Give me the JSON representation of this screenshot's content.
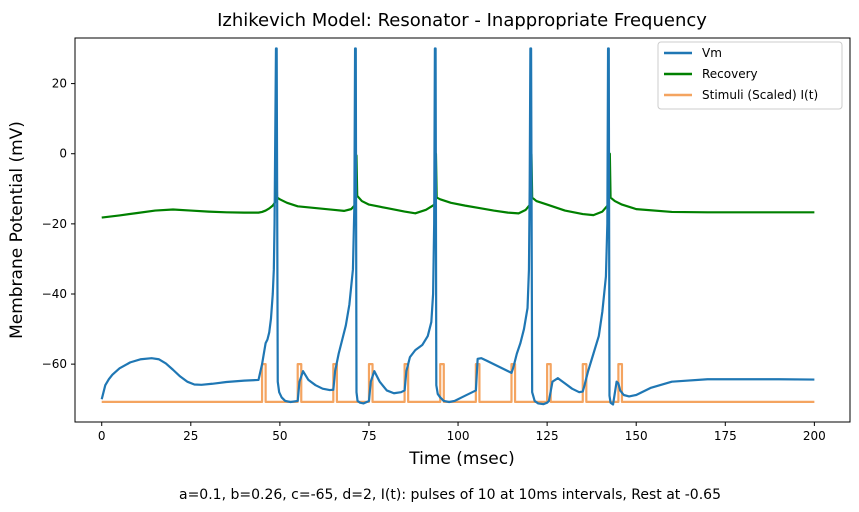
{
  "chart_data": {
    "type": "line",
    "title": "Izhikevich Model: Resonator - Inappropriate Frequency",
    "xlabel": "Time (msec)",
    "ylabel": "Membrane Potential (mV)",
    "caption": "a=0.1, b=0.26, c=-65, d=2, I(t): pulses of 10 at 10ms intervals, Rest at -0.65",
    "xlim": [
      -7.5,
      210
    ],
    "ylim": [
      -76.5,
      33
    ],
    "xticks": [
      0,
      25,
      50,
      75,
      100,
      125,
      150,
      175,
      200
    ],
    "yticks": [
      -60,
      -40,
      -20,
      0,
      20
    ],
    "legend_position": "top-right",
    "grid": false,
    "colors": {
      "vm": "#1f77b4",
      "recovery": "#008000",
      "stimuli": "#f4a460"
    },
    "series": [
      {
        "name": "Vm",
        "x": [
          0,
          1,
          2,
          3,
          5,
          8,
          11,
          14,
          16,
          18,
          20,
          22,
          24,
          26,
          28,
          31,
          35,
          40,
          44,
          45,
          45.5,
          46,
          46.5,
          47,
          47.5,
          48,
          48.3,
          48.5,
          48.7,
          48.9,
          49.1,
          49.4,
          49.8,
          50.5,
          51.5,
          53,
          55,
          55.5,
          56.5,
          58,
          60,
          62,
          64,
          65,
          65.5,
          66.5,
          67.5,
          68.5,
          69.5,
          70.5,
          70.9,
          71.1,
          71.3,
          71.5,
          71.8,
          72.5,
          73.5,
          75,
          75.5,
          76.5,
          78,
          80,
          82,
          84,
          85,
          85.5,
          86.5,
          88,
          90,
          91.5,
          92.5,
          93,
          93.3,
          93.5,
          93.7,
          93.9,
          94.3,
          95,
          96,
          97.5,
          99,
          101,
          103,
          105,
          105.5,
          106.5,
          108,
          110,
          112,
          114,
          115,
          115.5,
          116.5,
          117.5,
          118.5,
          119.5,
          119.9,
          120.1,
          120.3,
          120.5,
          120.8,
          121.5,
          122.5,
          124,
          125,
          125.5,
          126.5,
          128,
          130,
          132,
          134,
          135,
          135.5,
          136.5,
          138,
          139.5,
          140.5,
          141.5,
          141.9,
          142.1,
          142.3,
          142.5,
          142.8,
          143.5,
          144.5,
          145,
          145.5,
          146.5,
          148,
          150,
          154,
          160,
          170,
          180,
          190,
          200
        ],
        "y": [
          -70,
          -66,
          -64.3,
          -63,
          -61.2,
          -59.5,
          -58.6,
          -58.3,
          -58.6,
          -59.8,
          -61.6,
          -63.5,
          -65,
          -65.8,
          -65.9,
          -65.6,
          -65.1,
          -64.7,
          -64.5,
          -60,
          -57,
          -54,
          -53,
          -51,
          -47,
          -40,
          -33,
          -20,
          5,
          30,
          30,
          -65,
          -68,
          -69.5,
          -70.5,
          -70.8,
          -70.5,
          -65,
          -62,
          -64.5,
          -66,
          -67,
          -67.4,
          -67.3,
          -62,
          -57,
          -53,
          -49,
          -43,
          -33,
          -15,
          30,
          30,
          -68,
          -70.5,
          -71,
          -71.2,
          -70.5,
          -65,
          -62,
          -65,
          -67.5,
          -68.3,
          -68,
          -67.5,
          -62,
          -58,
          -56,
          -54.5,
          -52,
          -48,
          -40,
          -20,
          30,
          30,
          -66,
          -68.5,
          -69.5,
          -70.5,
          -70.8,
          -70.5,
          -69.5,
          -68.5,
          -67.5,
          -58.5,
          -58.3,
          -59,
          -60,
          -61,
          -62,
          -62.5,
          -61,
          -57,
          -54,
          -50,
          -44,
          -33,
          -10,
          30,
          30,
          -68,
          -70.5,
          -71.2,
          -71.4,
          -71,
          -70.5,
          -65,
          -64,
          -65.5,
          -67,
          -68,
          -67.8,
          -66,
          -62,
          -57,
          -52,
          -45,
          -35,
          -20,
          30,
          30,
          -69,
          -71,
          -71.5,
          -65,
          -65.5,
          -67.5,
          -68.8,
          -69.2,
          -68.8,
          -66.8,
          -65,
          -64.3,
          -64.3,
          -64.3,
          -64.4
        ]
      },
      {
        "name": "Recovery",
        "x": [
          0,
          5,
          10,
          15,
          20,
          25,
          30,
          35,
          40,
          44,
          45,
          46,
          47,
          48,
          48.7,
          49,
          49.2,
          50,
          52,
          55,
          60,
          65,
          68,
          70,
          71.2,
          71.5,
          71.7,
          73,
          75,
          80,
          85,
          88,
          91,
          93.4,
          93.8,
          94,
          95,
          98,
          102,
          106,
          110,
          114,
          117,
          119,
          120.2,
          120.6,
          120.8,
          122,
          125,
          130,
          135,
          138,
          140.5,
          142.2,
          142.6,
          142.8,
          144,
          146,
          150,
          160,
          170,
          180,
          190,
          200
        ],
        "y": [
          -18.2,
          -17.6,
          -16.9,
          -16.2,
          -15.9,
          -16.2,
          -16.5,
          -16.7,
          -16.8,
          -16.8,
          -16.6,
          -16.2,
          -15.6,
          -14.8,
          -13.8,
          0,
          -12.5,
          -13,
          -14,
          -15,
          -15.5,
          -16,
          -16.3,
          -15.8,
          -14.5,
          -0.5,
          -12,
          -13.5,
          -14.5,
          -15.5,
          -16.5,
          -17,
          -16,
          -14.5,
          0,
          -12.5,
          -13,
          -14,
          -14.8,
          -15.5,
          -16.2,
          -16.8,
          -17,
          -16,
          -14.5,
          0,
          -12.5,
          -13.5,
          -14.5,
          -16.2,
          -17.2,
          -17.5,
          -16.5,
          -14.5,
          0,
          -12.5,
          -13.5,
          -14.5,
          -15.8,
          -16.6,
          -16.7,
          -16.7,
          -16.7,
          -16.7
        ]
      },
      {
        "name": "Stimuli (Scaled) I(t)",
        "baseline": -70.75,
        "amplitude": -60.0,
        "pulses": [
          [
            45,
            46
          ],
          [
            55,
            56
          ],
          [
            65,
            66
          ],
          [
            75,
            76
          ],
          [
            85,
            86
          ],
          [
            95,
            96
          ],
          [
            105,
            106
          ],
          [
            115,
            116
          ],
          [
            125,
            126
          ],
          [
            135,
            136
          ],
          [
            145,
            146
          ]
        ],
        "xlim": [
          0,
          200
        ]
      }
    ]
  }
}
